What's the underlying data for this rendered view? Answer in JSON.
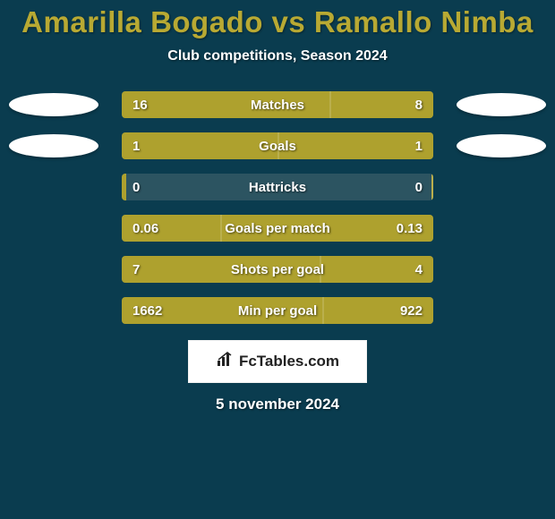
{
  "colors": {
    "background": "#0a3c4f",
    "title": "#b8a933",
    "subtitle": "#ffffff",
    "track": "#2c5461",
    "bar_left": "#aea12e",
    "bar_right": "#aea12e",
    "value_text": "#ffffff",
    "metric_text": "#ffffff",
    "ellipse": "#ffffff",
    "logo_bg": "#ffffff",
    "logo_text": "#222222",
    "date_text": "#ffffff"
  },
  "layout": {
    "title_fontsize": 33,
    "subtitle_fontsize": 16,
    "row_gap": 16,
    "track_width": 348,
    "track_height": 30
  },
  "header": {
    "title": "Amarilla Bogado vs Ramallo Nimba",
    "subtitle": "Club competitions, Season 2024"
  },
  "rows": [
    {
      "metric": "Matches",
      "left": "16",
      "right": "8",
      "left_pct": 66.7,
      "right_pct": 33.3,
      "show_ellipses": true
    },
    {
      "metric": "Goals",
      "left": "1",
      "right": "1",
      "left_pct": 50.0,
      "right_pct": 50.0,
      "show_ellipses": true
    },
    {
      "metric": "Hattricks",
      "left": "0",
      "right": "0",
      "left_pct": 1.5,
      "right_pct": 0.0,
      "show_ellipses": false
    },
    {
      "metric": "Goals per match",
      "left": "0.06",
      "right": "0.13",
      "left_pct": 31.6,
      "right_pct": 68.4,
      "show_ellipses": false
    },
    {
      "metric": "Shots per goal",
      "left": "7",
      "right": "4",
      "left_pct": 63.6,
      "right_pct": 36.4,
      "show_ellipses": false
    },
    {
      "metric": "Min per goal",
      "left": "1662",
      "right": "922",
      "left_pct": 64.3,
      "right_pct": 35.7,
      "show_ellipses": false
    }
  ],
  "logo": {
    "text": "FcTables.com"
  },
  "date": "5 november 2024"
}
